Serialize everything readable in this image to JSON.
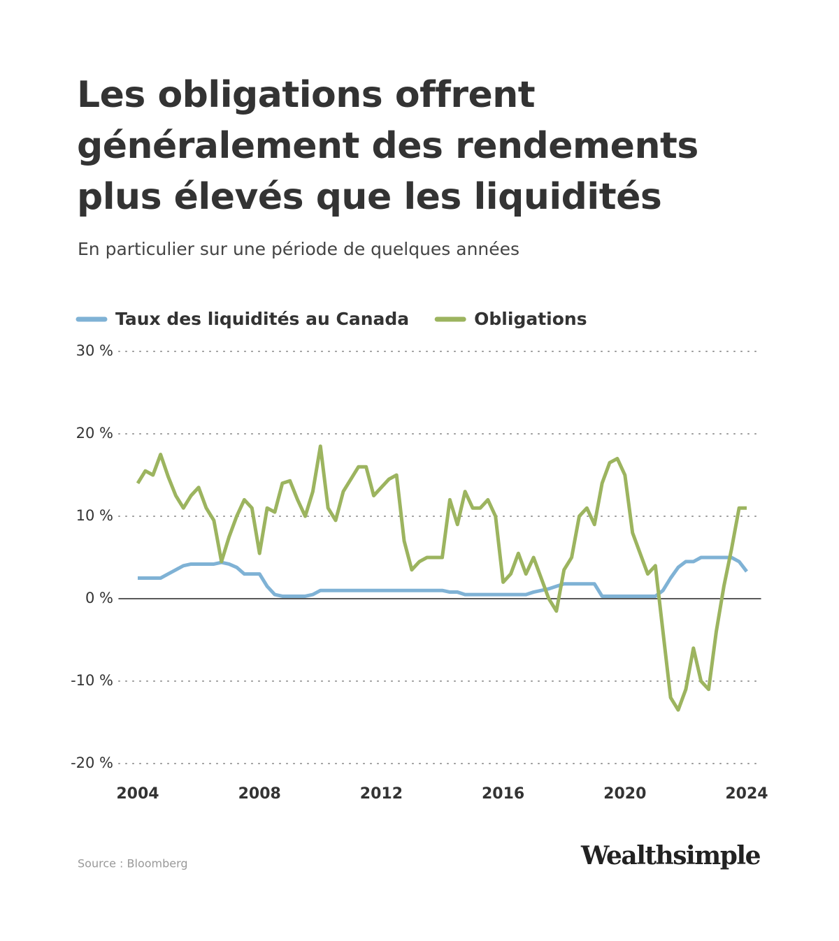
{
  "chart_data": {
    "type": "line",
    "title": "Les obligations offrent généralement des rendements plus élevés que les liquidités",
    "subtitle": "En particulier sur une période de quelques années",
    "source": "Source : Bloomberg",
    "brand": "Wealthsimple",
    "x": [
      2004,
      2004.25,
      2004.5,
      2004.75,
      2005,
      2005.25,
      2005.5,
      2005.75,
      2006,
      2006.25,
      2006.5,
      2006.75,
      2007,
      2007.25,
      2007.5,
      2007.75,
      2008,
      2008.25,
      2008.5,
      2008.75,
      2009,
      2009.25,
      2009.5,
      2009.75,
      2010,
      2010.25,
      2010.5,
      2010.75,
      2011,
      2011.25,
      2011.5,
      2011.75,
      2012,
      2012.25,
      2012.5,
      2012.75,
      2013,
      2013.25,
      2013.5,
      2013.75,
      2014,
      2014.25,
      2014.5,
      2014.75,
      2015,
      2015.25,
      2015.5,
      2015.75,
      2016,
      2016.25,
      2016.5,
      2016.75,
      2017,
      2017.25,
      2017.5,
      2017.75,
      2018,
      2018.25,
      2018.5,
      2018.75,
      2019,
      2019.25,
      2019.5,
      2019.75,
      2020,
      2020.25,
      2020.5,
      2020.75,
      2021,
      2021.25,
      2021.5,
      2021.75,
      2022,
      2022.25,
      2022.5,
      2022.75,
      2023,
      2023.25,
      2023.5,
      2023.75,
      2024
    ],
    "series": [
      {
        "name": "Taux des liquidités au Canada",
        "color": "#7fb2d5",
        "values": [
          2.5,
          2.5,
          2.5,
          2.5,
          3.0,
          3.5,
          4.0,
          4.2,
          4.2,
          4.2,
          4.2,
          4.4,
          4.2,
          3.8,
          3.0,
          3.0,
          3.0,
          1.5,
          0.5,
          0.3,
          0.3,
          0.3,
          0.3,
          0.5,
          1,
          1,
          1,
          1,
          1,
          1,
          1,
          1,
          1,
          1,
          1,
          1,
          1,
          1,
          1,
          1,
          1,
          0.8,
          0.8,
          0.5,
          0.5,
          0.5,
          0.5,
          0.5,
          0.5,
          0.5,
          0.5,
          0.5,
          0.8,
          1.0,
          1.2,
          1.5,
          1.8,
          1.8,
          1.8,
          1.8,
          1.8,
          0.3,
          0.3,
          0.3,
          0.3,
          0.3,
          0.3,
          0.3,
          0.3,
          1.0,
          2.5,
          3.8,
          4.5,
          4.5,
          5.0,
          5.0,
          5.0,
          5.0,
          5.0,
          4.5,
          3.3
        ]
      },
      {
        "name": "Obligations",
        "color": "#9cb45f",
        "values": [
          14,
          15.5,
          15,
          17.5,
          14.8,
          12.5,
          11,
          12.5,
          13.5,
          11,
          9.5,
          4.5,
          7.5,
          10,
          12,
          11,
          5.5,
          11,
          10.5,
          14,
          14.3,
          12,
          10,
          13,
          18.5,
          11,
          9.5,
          13,
          14.5,
          16,
          16,
          12.5,
          13.5,
          14.5,
          15,
          7,
          3.5,
          4.5,
          5,
          5,
          5,
          12,
          9,
          13,
          11,
          11,
          12,
          10,
          2,
          3,
          5.5,
          3,
          5,
          2.5,
          0,
          -1.5,
          3.5,
          5,
          10,
          11,
          9,
          14,
          16.5,
          17,
          15,
          8,
          5.5,
          3,
          4,
          -4,
          -12,
          -13.5,
          -11,
          -6,
          -10,
          -11,
          -4,
          1.5,
          6,
          11,
          11
        ]
      }
    ],
    "xlim": [
      2004,
      2024
    ],
    "xticks": [
      2004,
      2008,
      2012,
      2016,
      2020,
      2024
    ],
    "ylim": [
      -20,
      30
    ],
    "yticks": [
      {
        "value": -20,
        "label": "-20 %"
      },
      {
        "value": -10,
        "label": "-10 %"
      },
      {
        "value": 0,
        "label": "0 %"
      },
      {
        "value": 10,
        "label": "10 %"
      },
      {
        "value": 20,
        "label": "20 %"
      },
      {
        "value": 30,
        "label": "30 %"
      }
    ],
    "grid": true
  }
}
